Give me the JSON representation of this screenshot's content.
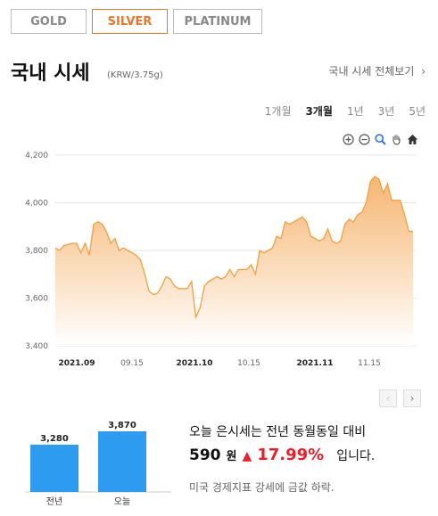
{
  "tabs": [
    {
      "label": "GOLD",
      "active": false
    },
    {
      "label": "SILVER",
      "active": true
    },
    {
      "label": "PLATINUM",
      "active": false
    }
  ],
  "header": {
    "title": "국내 시세",
    "unit": "(KRW/3.75g)",
    "all_link": "국내 시세 전체보기",
    "all_link_arrow": "›"
  },
  "periods": [
    "1개월",
    "3개월",
    "1년",
    "3년",
    "5년"
  ],
  "active_period": "3개월",
  "chart_data": {
    "type": "area",
    "yticks": [
      "4,200",
      "4,000",
      "3,800",
      "3,600",
      "3,400"
    ],
    "ylim": [
      3400,
      4200
    ],
    "xticks": [
      {
        "label": "2021.09",
        "bold": true
      },
      {
        "label": "09.15",
        "bold": false
      },
      {
        "label": "2021.10",
        "bold": true
      },
      {
        "label": "10.15",
        "bold": false
      },
      {
        "label": "2021.11",
        "bold": true
      },
      {
        "label": "11.15",
        "bold": false
      }
    ],
    "values": [
      3810,
      3800,
      3820,
      3825,
      3830,
      3830,
      3790,
      3830,
      3780,
      3910,
      3920,
      3910,
      3880,
      3830,
      3850,
      3800,
      3810,
      3800,
      3790,
      3780,
      3760,
      3700,
      3630,
      3615,
      3620,
      3650,
      3690,
      3680,
      3650,
      3640,
      3640,
      3640,
      3670,
      3520,
      3560,
      3650,
      3670,
      3680,
      3690,
      3680,
      3690,
      3720,
      3690,
      3720,
      3720,
      3720,
      3740,
      3700,
      3800,
      3790,
      3800,
      3810,
      3860,
      3850,
      3920,
      3910,
      3920,
      3930,
      3940,
      3920,
      3860,
      3850,
      3840,
      3850,
      3890,
      3840,
      3830,
      3840,
      3910,
      3930,
      3920,
      3950,
      3960,
      4000,
      4090,
      4110,
      4100,
      4040,
      4080,
      4010,
      4010,
      4010,
      3950,
      3880,
      3880
    ],
    "line_color": "#f0a040",
    "fill_top": "#f6b26b",
    "fill_bottom": "#ffffff"
  },
  "nav": {
    "prev": "‹",
    "next": "›"
  },
  "mini_chart": {
    "bars": [
      {
        "label": "전년",
        "value": 3280,
        "value_label": "3,280"
      },
      {
        "label": "오늘",
        "value": 3870,
        "value_label": "3,870"
      }
    ],
    "color": "#2d9cf0"
  },
  "comparison": {
    "text": "오늘 은시세는 전년 동월동일 대비",
    "diff": "590",
    "won": "원",
    "arrow": "▲",
    "pct": "17.99%",
    "tail": "입니다.",
    "note": "미국 경제지표 강세에 금값 하락."
  }
}
